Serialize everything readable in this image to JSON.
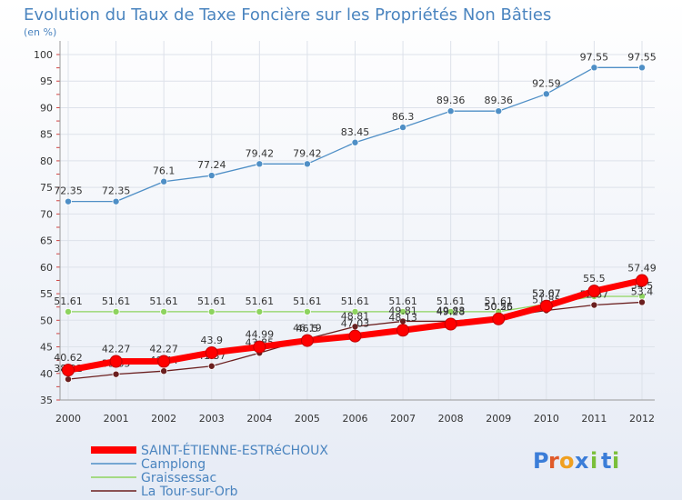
{
  "chart_data": {
    "type": "line",
    "title": "Evolution du Taux de Taxe Foncière sur les Propriétés Non Bâties",
    "subtitle": "(en %)",
    "xlabel": "",
    "ylabel": "",
    "x": [
      "2000",
      "2001",
      "2002",
      "2003",
      "2004",
      "2005",
      "2006",
      "2007",
      "2008",
      "2009",
      "2010",
      "2011",
      "2012"
    ],
    "yticks": [
      35,
      40,
      45,
      50,
      55,
      60,
      65,
      70,
      75,
      80,
      85,
      90,
      95,
      100
    ],
    "ylim": [
      35,
      100
    ],
    "grid": true,
    "legend_position": "bottom-left",
    "series": [
      {
        "name": "Camplong",
        "color": "#4f8fc6",
        "values": [
          72.35,
          72.35,
          76.1,
          77.24,
          79.42,
          79.42,
          83.45,
          86.3,
          89.36,
          89.36,
          92.59,
          97.55,
          97.55
        ],
        "labels": [
          "72.35",
          "72.35",
          "76.1",
          "77.24",
          "79.42",
          "79.42",
          "83.45",
          "86.3",
          "89.36",
          "89.36",
          "92.59",
          "97.55",
          "97.55"
        ]
      },
      {
        "name": "Graissessac",
        "color": "#8dd35f",
        "values": [
          51.61,
          51.61,
          51.61,
          51.61,
          51.61,
          51.61,
          51.61,
          51.61,
          51.61,
          51.61,
          53.07,
          54.5,
          54.5
        ],
        "labels": [
          "51.61",
          "51.61",
          "51.61",
          "51.61",
          "51.61",
          "51.61",
          "51.61",
          "51.61",
          "51.61",
          "51.61",
          "53.07",
          "",
          "54.5"
        ]
      },
      {
        "name": "La Tour-sur-Orb",
        "color": "#6b1f1f",
        "values": [
          38.91,
          39.85,
          40.44,
          41.37,
          43.85,
          46.5,
          48.81,
          49.81,
          49.83,
          50.55,
          51.85,
          52.87,
          53.4
        ],
        "labels": [
          "38.91",
          "39.85",
          "40.44",
          "41.37",
          "43.85",
          "46.5",
          "48.81",
          "49.81",
          "49.83",
          "50.55",
          "51.85",
          "52.87",
          "53.4"
        ]
      },
      {
        "name": "SAINT-ÉTIENNE-ESTRéCHOUX",
        "color": "#ff0000",
        "values": [
          40.62,
          42.27,
          42.27,
          43.9,
          44.99,
          46.19,
          47.03,
          48.13,
          49.28,
          50.26,
          52.67,
          55.5,
          57.49
        ],
        "labels": [
          "40.62",
          "42.27",
          "42.27",
          "43.9",
          "44.99",
          "46.19",
          "47.03",
          "48.13",
          "49.28",
          "50.26",
          "52.67",
          "55.5",
          "57.49"
        ]
      }
    ],
    "legend": [
      "SAINT-ÉTIENNE-ESTRéCHOUX",
      "Camplong",
      "Graissessac",
      "La Tour-sur-Orb"
    ]
  },
  "brand": {
    "letters": [
      "P",
      "r",
      "o",
      "x",
      "i",
      "t",
      "i"
    ],
    "colors": [
      "#3b7dd8",
      "#e05a2a",
      "#f0a020",
      "#3b7dd8",
      "#7bbf3a",
      "#3b7dd8",
      "#7bbf3a"
    ]
  }
}
